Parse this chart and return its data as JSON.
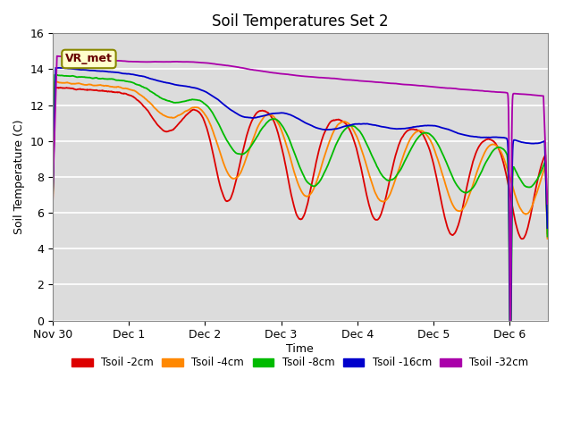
{
  "title": "Soil Temperatures Set 2",
  "xlabel": "Time",
  "ylabel": "Soil Temperature (C)",
  "ylim": [
    0,
    16
  ],
  "bg_color": "#dcdcdc",
  "fig_color": "#ffffff",
  "annotation": "VR_met",
  "legend": [
    "Tsoil -2cm",
    "Tsoil -4cm",
    "Tsoil -8cm",
    "Tsoil -16cm",
    "Tsoil -32cm"
  ],
  "colors": [
    "#dd0000",
    "#ff8800",
    "#00bb00",
    "#0000cc",
    "#aa00aa"
  ],
  "xtick_labels": [
    "Nov 30",
    "Dec 1",
    "Dec 2",
    "Dec 3",
    "Dec 4",
    "Dec 5",
    "Dec 6"
  ],
  "xtick_positions": [
    0,
    24,
    48,
    72,
    96,
    120,
    144
  ],
  "total_hours": 156
}
